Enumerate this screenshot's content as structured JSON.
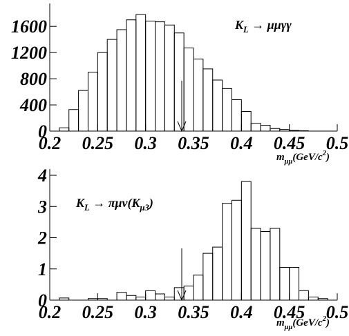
{
  "chart_data": [
    {
      "type": "histogram",
      "annotation": [
        {
          "text": "K"
        },
        {
          "text": "L",
          "shift": "sub"
        },
        {
          "text": " → μμγγ"
        }
      ],
      "x_label": [
        {
          "text": "m"
        },
        {
          "text": "μμ",
          "shift": "sub"
        },
        {
          "text": "(GeV/c"
        },
        {
          "text": "2",
          "shift": "sup"
        },
        {
          "text": ")"
        }
      ],
      "bins": [
        0.21,
        0.22,
        0.23,
        0.24,
        0.25,
        0.26,
        0.27,
        0.28,
        0.29,
        0.3,
        0.31,
        0.32,
        0.33,
        0.34,
        0.35,
        0.36,
        0.37,
        0.38,
        0.39,
        0.4,
        0.41,
        0.42,
        0.43,
        0.44,
        0.45,
        0.46,
        0.47
      ],
      "values": [
        50,
        330,
        620,
        900,
        1200,
        1400,
        1550,
        1700,
        1780,
        1680,
        1670,
        1620,
        1500,
        1270,
        1100,
        950,
        780,
        650,
        480,
        300,
        120,
        90,
        40,
        25,
        10,
        5
      ],
      "color": "#000000",
      "xlim": [
        0.2,
        0.5
      ],
      "xticks": [
        0.2,
        0.25,
        0.3,
        0.35,
        0.4,
        0.45,
        0.5
      ],
      "ylim": [
        0,
        1950
      ],
      "yticks": [
        0,
        400,
        800,
        1200,
        1600
      ]
    },
    {
      "type": "histogram",
      "annotation": [
        {
          "text": "K"
        },
        {
          "text": "L",
          "shift": "sub"
        },
        {
          "text": " → πμν(K"
        },
        {
          "text": "μ3",
          "shift": "sub"
        },
        {
          "text": ")"
        }
      ],
      "x_label": [
        {
          "text": "m"
        },
        {
          "text": "μμ",
          "shift": "sub"
        },
        {
          "text": "(GeV/c"
        },
        {
          "text": "2",
          "shift": "sup"
        },
        {
          "text": ")"
        }
      ],
      "bins": [
        0.2,
        0.21,
        0.22,
        0.23,
        0.24,
        0.25,
        0.26,
        0.27,
        0.28,
        0.29,
        0.3,
        0.31,
        0.32,
        0.33,
        0.34,
        0.35,
        0.36,
        0.37,
        0.38,
        0.39,
        0.4,
        0.41,
        0.42,
        0.43,
        0.44,
        0.45,
        0.46,
        0.47,
        0.48,
        0.49
      ],
      "values": [
        0,
        0.07,
        0,
        0,
        0.05,
        0.05,
        0,
        0.25,
        0.15,
        0.1,
        0.3,
        0.2,
        0.1,
        0.4,
        0.45,
        0.8,
        1.5,
        1.7,
        3.1,
        3.2,
        3.8,
        2.3,
        2.2,
        2.3,
        1.05,
        1.05,
        0.3,
        0.1,
        0.05
      ],
      "color": "#000000",
      "xlim": [
        0.2,
        0.5
      ],
      "xticks": [
        0.2,
        0.25,
        0.3,
        0.35,
        0.4,
        0.45,
        0.5
      ],
      "ylim": [
        0,
        4.2
      ],
      "yticks": [
        0,
        1,
        2,
        3,
        4
      ]
    }
  ]
}
